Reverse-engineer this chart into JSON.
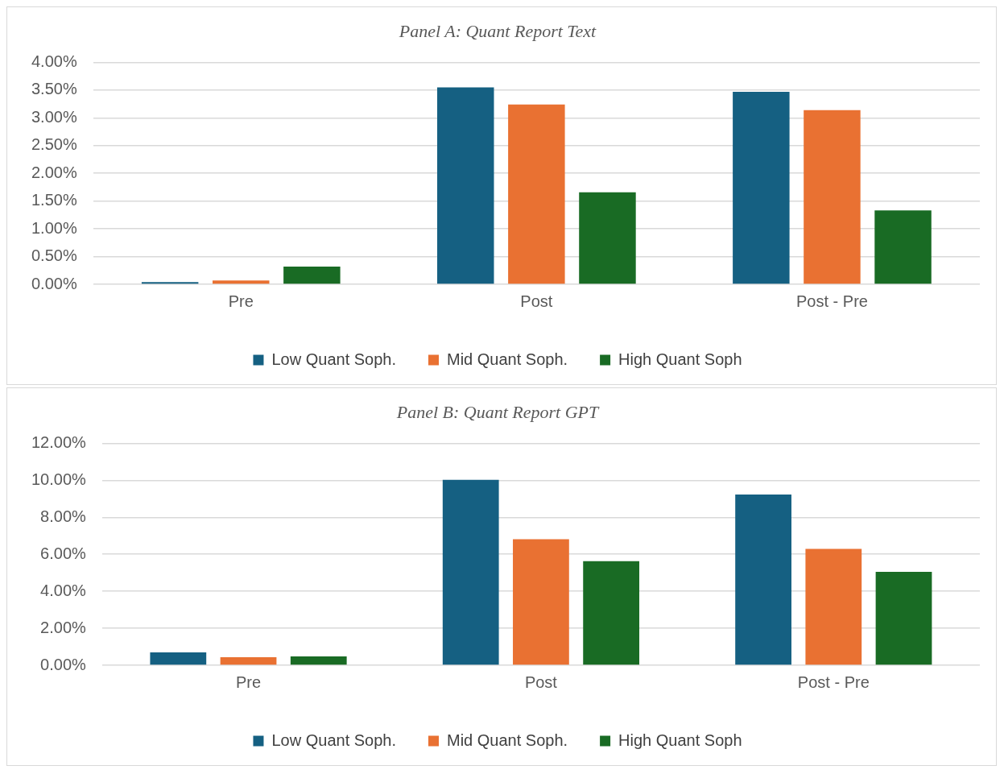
{
  "chart_data": [
    {
      "type": "bar",
      "title": "Panel A: Quant Report Text",
      "categories": [
        "Pre",
        "Post",
        "Post - Pre"
      ],
      "series": [
        {
          "name": "Low Quant Soph.",
          "color": "#156082",
          "values": [
            0.04,
            3.55,
            3.47
          ]
        },
        {
          "name": "Mid Quant Soph.",
          "color": "#e97132",
          "values": [
            0.07,
            3.24,
            3.14
          ]
        },
        {
          "name": "High Quant Soph",
          "color": "#196b24",
          "values": [
            0.32,
            1.66,
            1.33
          ]
        }
      ],
      "ylim": [
        0,
        4
      ],
      "yticks": [
        {
          "value": 0,
          "label": "0.00%"
        },
        {
          "value": 0.5,
          "label": "0.50%"
        },
        {
          "value": 1,
          "label": "1.00%"
        },
        {
          "value": 1.5,
          "label": "1.50%"
        },
        {
          "value": 2,
          "label": "2.00%"
        },
        {
          "value": 2.5,
          "label": "2.50%"
        },
        {
          "value": 3,
          "label": "3.00%"
        },
        {
          "value": 3.5,
          "label": "3.50%"
        },
        {
          "value": 4,
          "label": "4.00%"
        }
      ],
      "grid": "y",
      "legend": "bottom"
    },
    {
      "type": "bar",
      "title": "Panel B: Quant Report GPT",
      "categories": [
        "Pre",
        "Post",
        "Post - Pre"
      ],
      "series": [
        {
          "name": "Low Quant Soph.",
          "color": "#156082",
          "values": [
            0.7,
            10.02,
            9.23
          ]
        },
        {
          "name": "Mid Quant Soph.",
          "color": "#e97132",
          "values": [
            0.44,
            6.81,
            6.29
          ]
        },
        {
          "name": "High Quant Soph",
          "color": "#196b24",
          "values": [
            0.48,
            5.63,
            5.05
          ]
        }
      ],
      "ylim": [
        0,
        12
      ],
      "yticks": [
        {
          "value": 0,
          "label": "0.00%"
        },
        {
          "value": 2,
          "label": "2.00%"
        },
        {
          "value": 4,
          "label": "4.00%"
        },
        {
          "value": 6,
          "label": "6.00%"
        },
        {
          "value": 8,
          "label": "8.00%"
        },
        {
          "value": 10,
          "label": "10.00%"
        },
        {
          "value": 12,
          "label": "12.00%"
        }
      ],
      "grid": "y",
      "legend": "bottom"
    }
  ]
}
